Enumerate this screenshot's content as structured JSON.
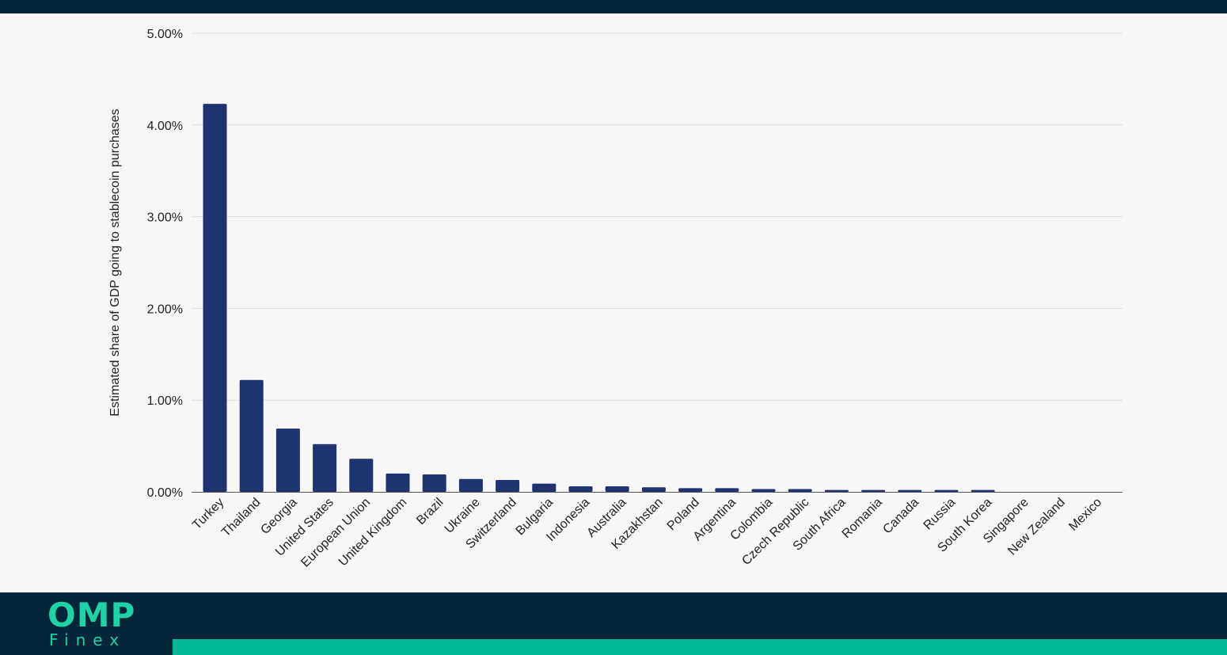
{
  "brand": {
    "logo_main": "OMP",
    "logo_sub": "Finex",
    "accent_color": "#1fd1a5",
    "bar_color": "#00b894",
    "background_color": "#04263a"
  },
  "chart_data": {
    "type": "bar",
    "title": "",
    "xlabel": "",
    "ylabel": "Estimated share of GDP going to stablecoin purchases",
    "ylim": [
      0,
      5
    ],
    "yticks": [
      0,
      1,
      2,
      3,
      4,
      5
    ],
    "ytick_labels": [
      "0.00%",
      "1.00%",
      "2.00%",
      "3.00%",
      "4.00%",
      "5.00%"
    ],
    "y_unit": "%",
    "grid": true,
    "bar_color": "#1f3370",
    "categories": [
      "Turkey",
      "Thailand",
      "Georgia",
      "United States",
      "European Union",
      "United Kingdom",
      "Brazil",
      "Ukraine",
      "Switzerland",
      "Bulgaria",
      "Indonesia",
      "Australia",
      "Kazakhstan",
      "Poland",
      "Argentina",
      "Colombia",
      "Czech Republic",
      "South Africa",
      "Romania",
      "Canada",
      "Russia",
      "South Korea",
      "Singapore",
      "New Zealand",
      "Mexico"
    ],
    "values": [
      4.23,
      1.22,
      0.69,
      0.52,
      0.36,
      0.2,
      0.19,
      0.14,
      0.13,
      0.09,
      0.06,
      0.06,
      0.05,
      0.04,
      0.04,
      0.03,
      0.03,
      0.02,
      0.02,
      0.02,
      0.02,
      0.02,
      0.0,
      0.0,
      0.0
    ]
  }
}
